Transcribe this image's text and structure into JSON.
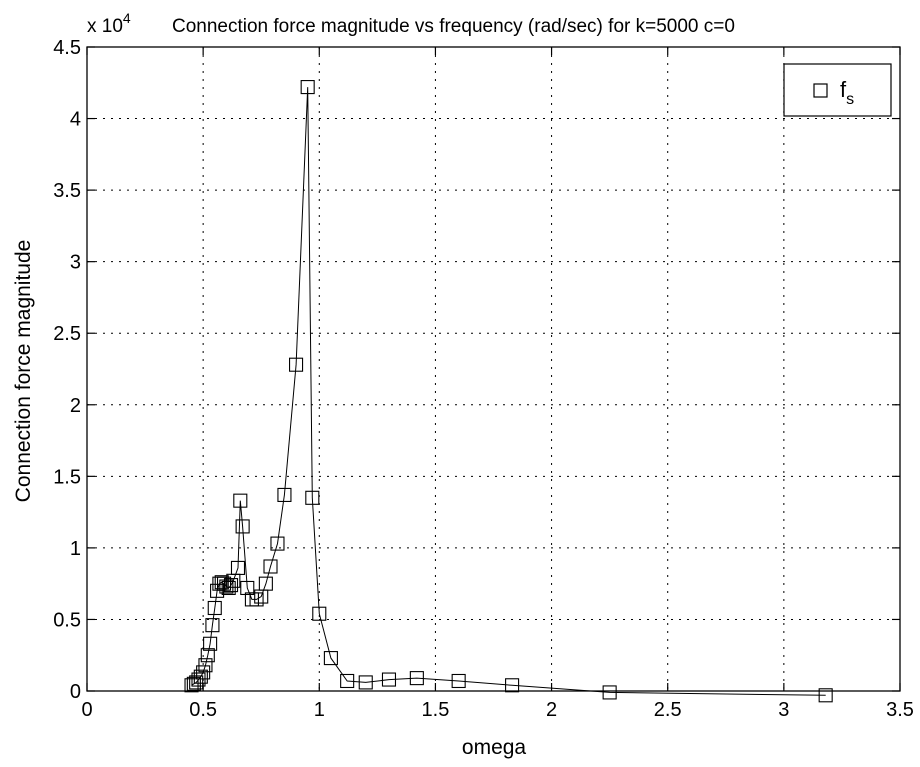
{
  "chart_data": {
    "type": "line",
    "title": "Connection force magnitude vs frequency (rad/sec) for k=5000 c=0",
    "scale_note": {
      "prefix": "x 10",
      "exponent": "4"
    },
    "xlabel": "omega",
    "ylabel": "Connection force magnitude",
    "xlim": [
      0,
      3.5
    ],
    "ylim": [
      0,
      4.5
    ],
    "xticks": [
      0,
      0.5,
      1,
      1.5,
      2,
      2.5,
      3,
      3.5
    ],
    "xtick_labels": [
      "0",
      "0.5",
      "1",
      "1.5",
      "2",
      "2.5",
      "3",
      "3.5"
    ],
    "yticks": [
      0,
      0.5,
      1,
      1.5,
      2,
      2.5,
      3,
      3.5,
      4,
      4.5
    ],
    "ytick_labels": [
      "0",
      "0.5",
      "1",
      "1.5",
      "2",
      "2.5",
      "3",
      "3.5",
      "4",
      "4.5"
    ],
    "grid": true,
    "legend_position": "top-right",
    "series": [
      {
        "name": "f",
        "name_subscript": "s",
        "marker": "square",
        "color": "#000000",
        "x": [
          0.45,
          0.46,
          0.47,
          0.48,
          0.49,
          0.5,
          0.51,
          0.52,
          0.53,
          0.54,
          0.55,
          0.56,
          0.57,
          0.58,
          0.59,
          0.6,
          0.61,
          0.62,
          0.63,
          0.65,
          0.66,
          0.67,
          0.69,
          0.71,
          0.73,
          0.75,
          0.77,
          0.79,
          0.82,
          0.85,
          0.9,
          0.95,
          0.97,
          1.0,
          1.05,
          1.12,
          1.2,
          1.3,
          1.42,
          1.6,
          1.83,
          2.25,
          3.18
        ],
        "y": [
          0.04,
          0.05,
          0.06,
          0.08,
          0.1,
          0.13,
          0.18,
          0.25,
          0.33,
          0.46,
          0.58,
          0.7,
          0.75,
          0.76,
          0.75,
          0.73,
          0.72,
          0.74,
          0.77,
          0.86,
          1.33,
          1.15,
          0.72,
          0.64,
          0.64,
          0.66,
          0.75,
          0.87,
          1.03,
          1.37,
          2.28,
          4.22,
          1.35,
          0.54,
          0.23,
          0.07,
          0.06,
          0.08,
          0.09,
          0.07,
          0.04,
          -0.01,
          -0.03
        ]
      }
    ]
  }
}
